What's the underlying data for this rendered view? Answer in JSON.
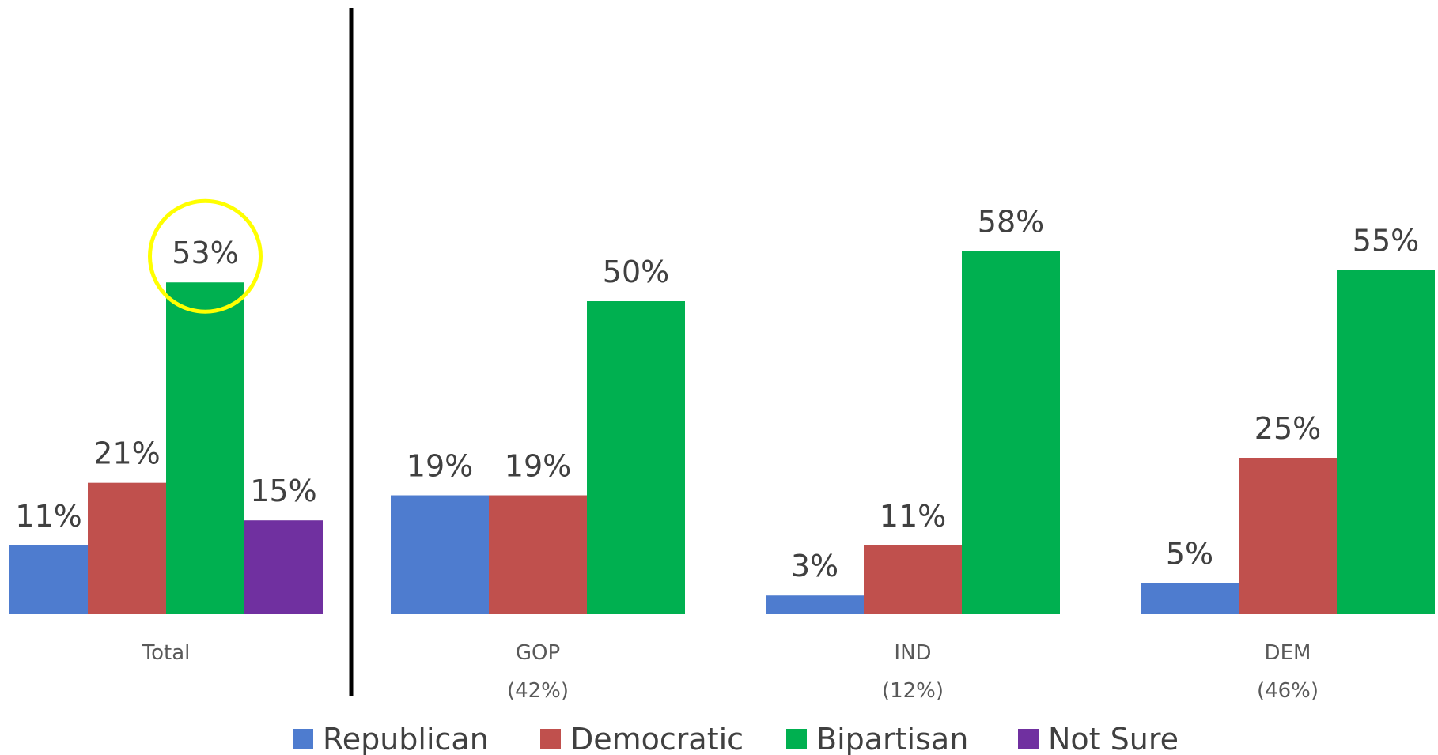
{
  "chart_data": {
    "type": "bar",
    "categories": [
      "Total",
      "GOP",
      "IND",
      "DEM"
    ],
    "category_sublabels": [
      "",
      "(42%)",
      "(12%)",
      "(46%)"
    ],
    "series": [
      {
        "name": "Republican",
        "color": "#4E7CCF",
        "values": [
          11,
          19,
          3,
          5
        ]
      },
      {
        "name": "Democratic",
        "color": "#C0504D",
        "values": [
          21,
          19,
          11,
          25
        ]
      },
      {
        "name": "Bipartisan",
        "color": "#00B050",
        "values": [
          53,
          50,
          58,
          55
        ]
      },
      {
        "name": "Not Sure",
        "color": "#7030A0",
        "values": [
          15,
          null,
          null,
          null
        ]
      }
    ],
    "value_suffix": "%",
    "ylim": [
      0,
      100
    ],
    "grid": false,
    "legend_position": "bottom",
    "highlight": {
      "category": "Total",
      "series": "Bipartisan",
      "color": "#FFFF00"
    },
    "separator_after_category": "Total"
  }
}
